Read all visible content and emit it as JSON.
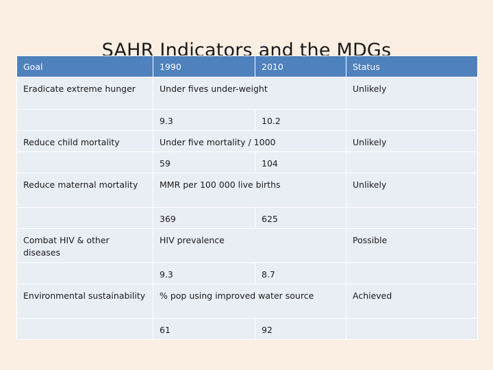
{
  "title": "SAHR Indicators and the MDGs",
  "table": {
    "headers": [
      "Goal",
      "1990",
      "2010",
      "Status"
    ],
    "rows": [
      {
        "goal": "Eradicate extreme hunger",
        "indicator": "Under fives under-weight",
        "status": "Unlikely",
        "value_1990": "9.3",
        "value_2010": "10.2"
      },
      {
        "goal": "Reduce child mortality",
        "indicator": "Under five mortality / 1000",
        "status": "Unlikely",
        "value_1990": "59",
        "value_2010": "104"
      },
      {
        "goal": "Reduce maternal mortality",
        "indicator": "MMR per 100 000 live births",
        "status": "Unlikely",
        "value_1990": "369",
        "value_2010": "625"
      },
      {
        "goal": "Combat HIV & other diseases",
        "indicator": "HIV prevalence",
        "status": "Possible",
        "value_1990": "9.3",
        "value_2010": "8.7"
      },
      {
        "goal": "Environmental sustainability",
        "indicator": "% pop using improved water source",
        "status": "Achieved",
        "value_1990": "61",
        "value_2010": "92"
      }
    ]
  },
  "colors": {
    "header_bg": "#4f81bd",
    "cell_bg": "#e9edf4",
    "page_bg": "#fbeee2"
  }
}
